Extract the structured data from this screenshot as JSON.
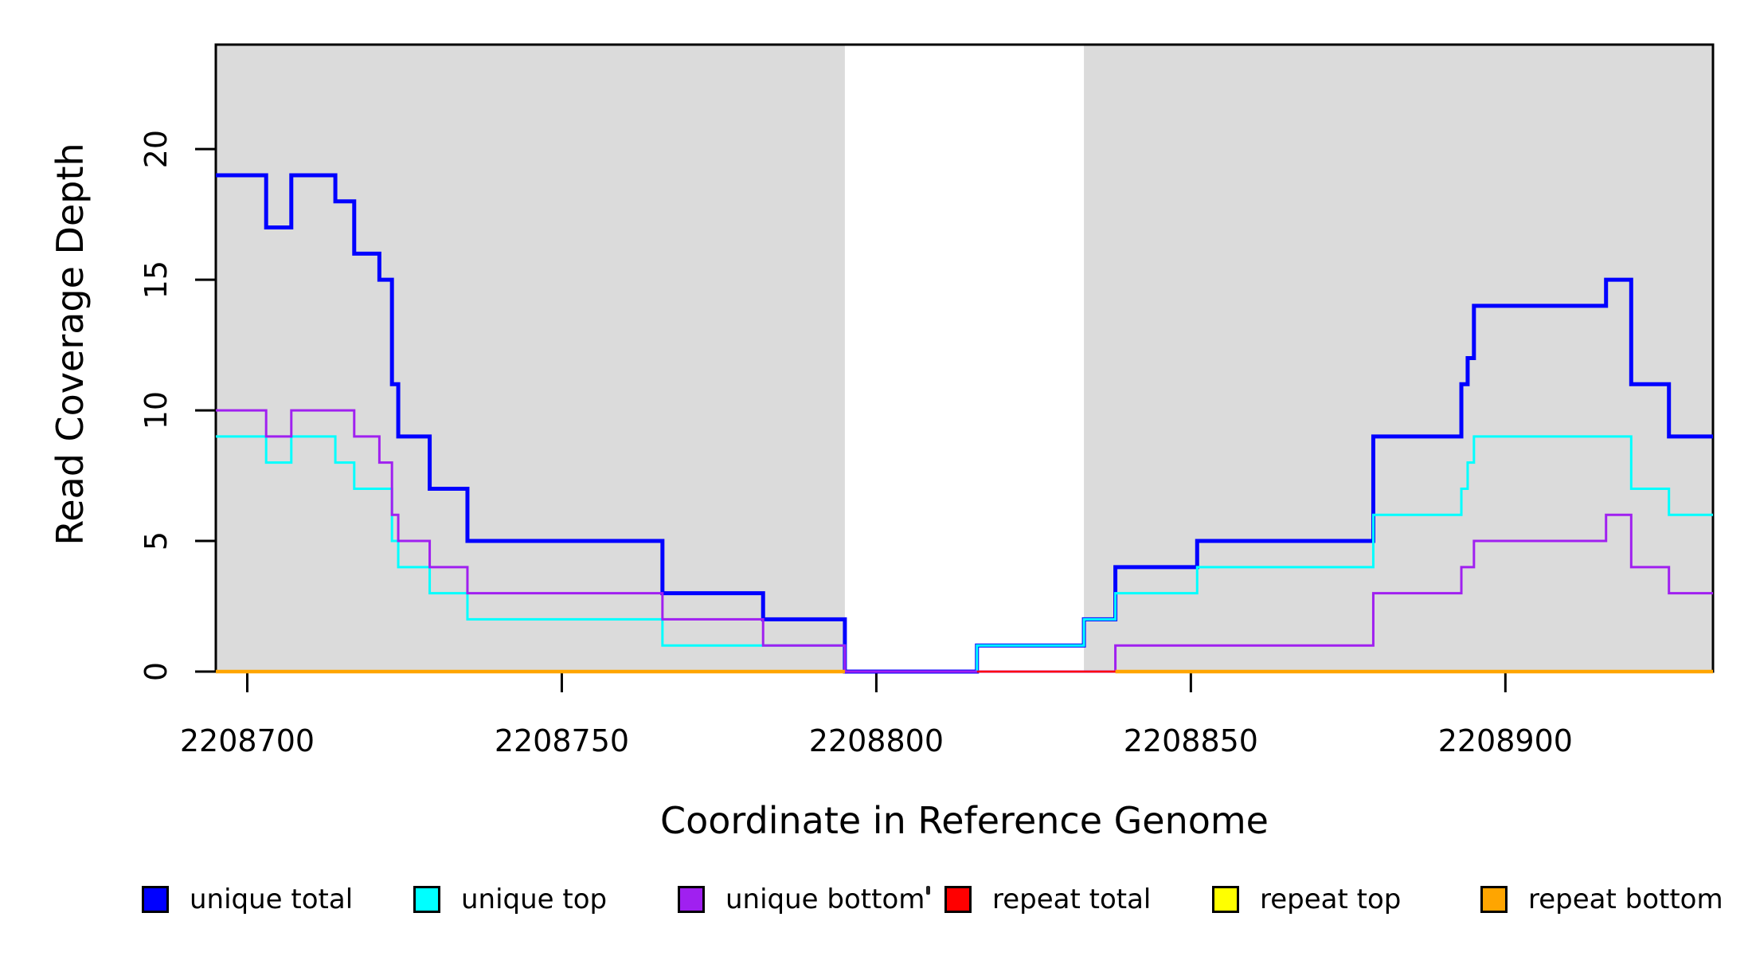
{
  "figure": {
    "background": "#FFFFFF",
    "plot_background": "#FFFFFF"
  },
  "chart_data": {
    "type": "line",
    "subtype": "step",
    "title": "",
    "xlabel": "Coordinate in Reference Genome",
    "ylabel": "Read Coverage Depth",
    "x_range": [
      2208695,
      2208933
    ],
    "y_range": [
      0,
      24
    ],
    "x_ticks": [
      2208700,
      2208750,
      2208800,
      2208850,
      2208900
    ],
    "x_tick_labels": [
      "2208700",
      "2208750",
      "2208800",
      "2208850",
      "2208900"
    ],
    "y_ticks": [
      0,
      5,
      10,
      15,
      20
    ],
    "y_tick_labels": [
      "0",
      "5",
      "10",
      "15",
      "20"
    ],
    "grid": false,
    "legend_position": "bottom",
    "box_color": "#000000",
    "shaded_regions": [
      {
        "name": "left-shaded-region",
        "x0": 2208695,
        "x1": 2208795,
        "color": "#DBDBDB"
      },
      {
        "name": "right-shaded-region",
        "x0": 2208833,
        "x1": 2208933,
        "color": "#DBDBDB"
      }
    ],
    "series": [
      {
        "name": "unique total",
        "color": "#0000FF",
        "line_width": 5,
        "segments": [
          {
            "points": [
              [
                2208695,
                19
              ],
              [
                2208703,
                17
              ],
              [
                2208707,
                19
              ],
              [
                2208714,
                18
              ],
              [
                2208717,
                16
              ],
              [
                2208721,
                15
              ],
              [
                2208723,
                11
              ],
              [
                2208724,
                9
              ],
              [
                2208729,
                7
              ],
              [
                2208735,
                5
              ],
              [
                2208766,
                3
              ],
              [
                2208782,
                2
              ],
              [
                2208795,
                0
              ],
              [
                2208816,
                1
              ],
              [
                2208833,
                2
              ],
              [
                2208838,
                4
              ],
              [
                2208851,
                5
              ],
              [
                2208879,
                9
              ],
              [
                2208893,
                11
              ],
              [
                2208894,
                12
              ],
              [
                2208895,
                14
              ],
              [
                2208916,
                15
              ],
              [
                2208920,
                11
              ],
              [
                2208926,
                9
              ],
              [
                2208933,
                9
              ]
            ]
          }
        ]
      },
      {
        "name": "unique top",
        "color": "#00FFFF",
        "line_width": 3,
        "segments": [
          {
            "points": [
              [
                2208695,
                9
              ],
              [
                2208703,
                8
              ],
              [
                2208707,
                9
              ],
              [
                2208714,
                8
              ],
              [
                2208717,
                7
              ],
              [
                2208723,
                5
              ],
              [
                2208724,
                4
              ],
              [
                2208729,
                3
              ],
              [
                2208735,
                2
              ],
              [
                2208766,
                1
              ],
              [
                2208795,
                0
              ],
              [
                2208816,
                1
              ],
              [
                2208833,
                2
              ],
              [
                2208838,
                3
              ],
              [
                2208851,
                4
              ],
              [
                2208879,
                6
              ],
              [
                2208893,
                7
              ],
              [
                2208894,
                8
              ],
              [
                2208895,
                9
              ],
              [
                2208920,
                7
              ],
              [
                2208926,
                6
              ],
              [
                2208933,
                6
              ]
            ]
          }
        ]
      },
      {
        "name": "unique bottom",
        "color": "#A020F0",
        "line_width": 3,
        "segments": [
          {
            "points": [
              [
                2208695,
                10
              ],
              [
                2208703,
                9
              ],
              [
                2208707,
                10
              ],
              [
                2208717,
                9
              ],
              [
                2208721,
                8
              ],
              [
                2208723,
                6
              ],
              [
                2208724,
                5
              ],
              [
                2208729,
                4
              ],
              [
                2208735,
                3
              ],
              [
                2208766,
                2
              ],
              [
                2208782,
                1
              ],
              [
                2208795,
                0
              ],
              [
                2208838,
                1
              ],
              [
                2208879,
                3
              ],
              [
                2208893,
                4
              ],
              [
                2208895,
                5
              ],
              [
                2208916,
                6
              ],
              [
                2208920,
                4
              ],
              [
                2208926,
                3
              ],
              [
                2208933,
                3
              ]
            ]
          }
        ]
      },
      {
        "name": "repeat total",
        "color": "#FF0000",
        "line_width": 2.5,
        "segments": [
          {
            "points": [
              [
                2208816,
                0
              ],
              [
                2208838,
                0
              ]
            ]
          }
        ]
      },
      {
        "name": "repeat top",
        "color": "#FFFF00",
        "line_width": 3,
        "segments": []
      },
      {
        "name": "repeat bottom",
        "color": "#FFA500",
        "line_width": 4.5,
        "segments": [
          {
            "points": [
              [
                2208695,
                0
              ],
              [
                2208795,
                0
              ]
            ]
          },
          {
            "points": [
              [
                2208838,
                0
              ],
              [
                2208933,
                0
              ]
            ]
          }
        ]
      }
    ]
  },
  "legend": {
    "items": [
      {
        "label": "unique total",
        "color": "#0000FF"
      },
      {
        "label": "unique top",
        "color": "#00FFFF"
      },
      {
        "label": "unique bottom",
        "color": "#A020F0"
      },
      {
        "label": "repeat total",
        "color": "#FF0000"
      },
      {
        "label": "repeat top",
        "color": "#FFFF00"
      },
      {
        "label": "repeat bottom",
        "color": "#FFA500"
      }
    ]
  }
}
